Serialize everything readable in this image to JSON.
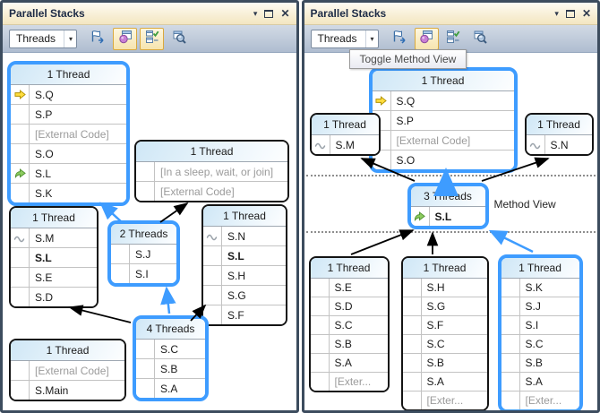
{
  "glyphs": {
    "dropdown": "▾",
    "close": "✕"
  },
  "colors": {
    "highlight_blue": "#3E9CFF",
    "titlebar_bg": "#F3E6C1",
    "toolbar_bg": "#B9C6D6",
    "gray_frame_text": "#9B9B9B",
    "active_button_bg": "#F6E4AE"
  },
  "panels": {
    "left": {
      "title": "Parallel Stacks",
      "window_controls": [
        {
          "name": "window-position-icon"
        },
        {
          "name": "maximize-icon"
        },
        {
          "name": "close-icon"
        }
      ],
      "toolbar": {
        "combo_value": "Threads",
        "buttons": [
          {
            "name": "show-only-flagged-icon",
            "active": false
          },
          {
            "name": "toggle-method-view-icon",
            "active": true
          },
          {
            "name": "auto-scroll-to-current-frame-icon",
            "active": true
          },
          {
            "name": "toggle-zoom-control-icon",
            "active": false
          }
        ]
      },
      "boxes": [
        {
          "header": "1 Thread",
          "highlight": true,
          "rows": [
            {
              "label": "S.Q",
              "icon": "current-frame-arrow"
            },
            {
              "label": "S.P"
            },
            {
              "label": "[External Code]",
              "style": "gray"
            },
            {
              "label": "S.O"
            },
            {
              "label": "S.L",
              "icon": "green-current-frame-arrow"
            },
            {
              "label": "S.K"
            }
          ]
        },
        {
          "header": "1 Thread",
          "highlight": false,
          "rows": [
            {
              "label": "[In a sleep, wait, or join]",
              "style": "gray"
            },
            {
              "label": "[External Code]",
              "style": "gray"
            }
          ]
        },
        {
          "header": "1 Thread",
          "highlight": false,
          "rows": [
            {
              "label": "S.M",
              "icon": "other-thread-wavy"
            },
            {
              "label": "S.L",
              "style": "bold"
            },
            {
              "label": "S.E"
            },
            {
              "label": "S.D"
            }
          ]
        },
        {
          "header": "2 Threads",
          "highlight": true,
          "rows": [
            {
              "label": "S.J"
            },
            {
              "label": "S.I"
            }
          ]
        },
        {
          "header": "1 Thread",
          "highlight": false,
          "rows": [
            {
              "label": "S.N",
              "icon": "other-thread-wavy"
            },
            {
              "label": "S.L",
              "style": "bold"
            },
            {
              "label": "S.H"
            },
            {
              "label": "S.G"
            },
            {
              "label": "S.F"
            }
          ]
        },
        {
          "header": "1 Thread",
          "highlight": false,
          "rows": [
            {
              "label": "[External Code]",
              "style": "gray"
            },
            {
              "label": "S.Main"
            }
          ]
        },
        {
          "header": "4 Threads",
          "highlight": true,
          "rows": [
            {
              "label": "S.C"
            },
            {
              "label": "S.B"
            },
            {
              "label": "S.A"
            }
          ]
        }
      ]
    },
    "right": {
      "title": "Parallel Stacks",
      "tooltip": "Toggle Method View",
      "method_view_label": "Method View",
      "window_controls": [
        {
          "name": "window-position-icon"
        },
        {
          "name": "maximize-icon"
        },
        {
          "name": "close-icon"
        }
      ],
      "toolbar": {
        "combo_value": "Threads",
        "buttons": [
          {
            "name": "show-only-flagged-icon",
            "active": false
          },
          {
            "name": "toggle-method-view-icon",
            "active": true
          },
          {
            "name": "auto-scroll-to-current-frame-icon",
            "active": false
          },
          {
            "name": "toggle-zoom-control-icon",
            "active": false
          }
        ]
      },
      "boxes": [
        {
          "header": "1 Thread",
          "highlight": true,
          "rows": [
            {
              "label": "S.Q",
              "icon": "current-frame-arrow"
            },
            {
              "label": "S.P"
            },
            {
              "label": "[External Code]",
              "style": "gray"
            },
            {
              "label": "S.O"
            }
          ]
        },
        {
          "header": "1 Thread",
          "highlight": false,
          "rows": [
            {
              "label": "S.M",
              "icon": "other-thread-wavy"
            }
          ]
        },
        {
          "header": "1 Thread",
          "highlight": false,
          "rows": [
            {
              "label": "S.N",
              "icon": "other-thread-wavy"
            }
          ]
        },
        {
          "header": "3 Threads",
          "highlight": true,
          "rows": [
            {
              "label": "S.L",
              "icon": "green-current-frame-arrow",
              "style": "bold"
            }
          ]
        },
        {
          "header": "1 Thread",
          "highlight": false,
          "rows": [
            {
              "label": "S.E"
            },
            {
              "label": "S.D"
            },
            {
              "label": "S.C"
            },
            {
              "label": "S.B"
            },
            {
              "label": "S.A"
            },
            {
              "label": "[Exter...",
              "style": "gray"
            }
          ]
        },
        {
          "header": "1 Thread",
          "highlight": false,
          "rows": [
            {
              "label": "S.H"
            },
            {
              "label": "S.G"
            },
            {
              "label": "S.F"
            },
            {
              "label": "S.C"
            },
            {
              "label": "S.B"
            },
            {
              "label": "S.A"
            },
            {
              "label": "[Exter...",
              "style": "gray"
            }
          ]
        },
        {
          "header": "1 Thread",
          "highlight": true,
          "rows": [
            {
              "label": "S.K"
            },
            {
              "label": "S.J"
            },
            {
              "label": "S.I"
            },
            {
              "label": "S.C"
            },
            {
              "label": "S.B"
            },
            {
              "label": "S.A"
            },
            {
              "label": "[Exter...",
              "style": "gray"
            }
          ]
        }
      ]
    }
  }
}
